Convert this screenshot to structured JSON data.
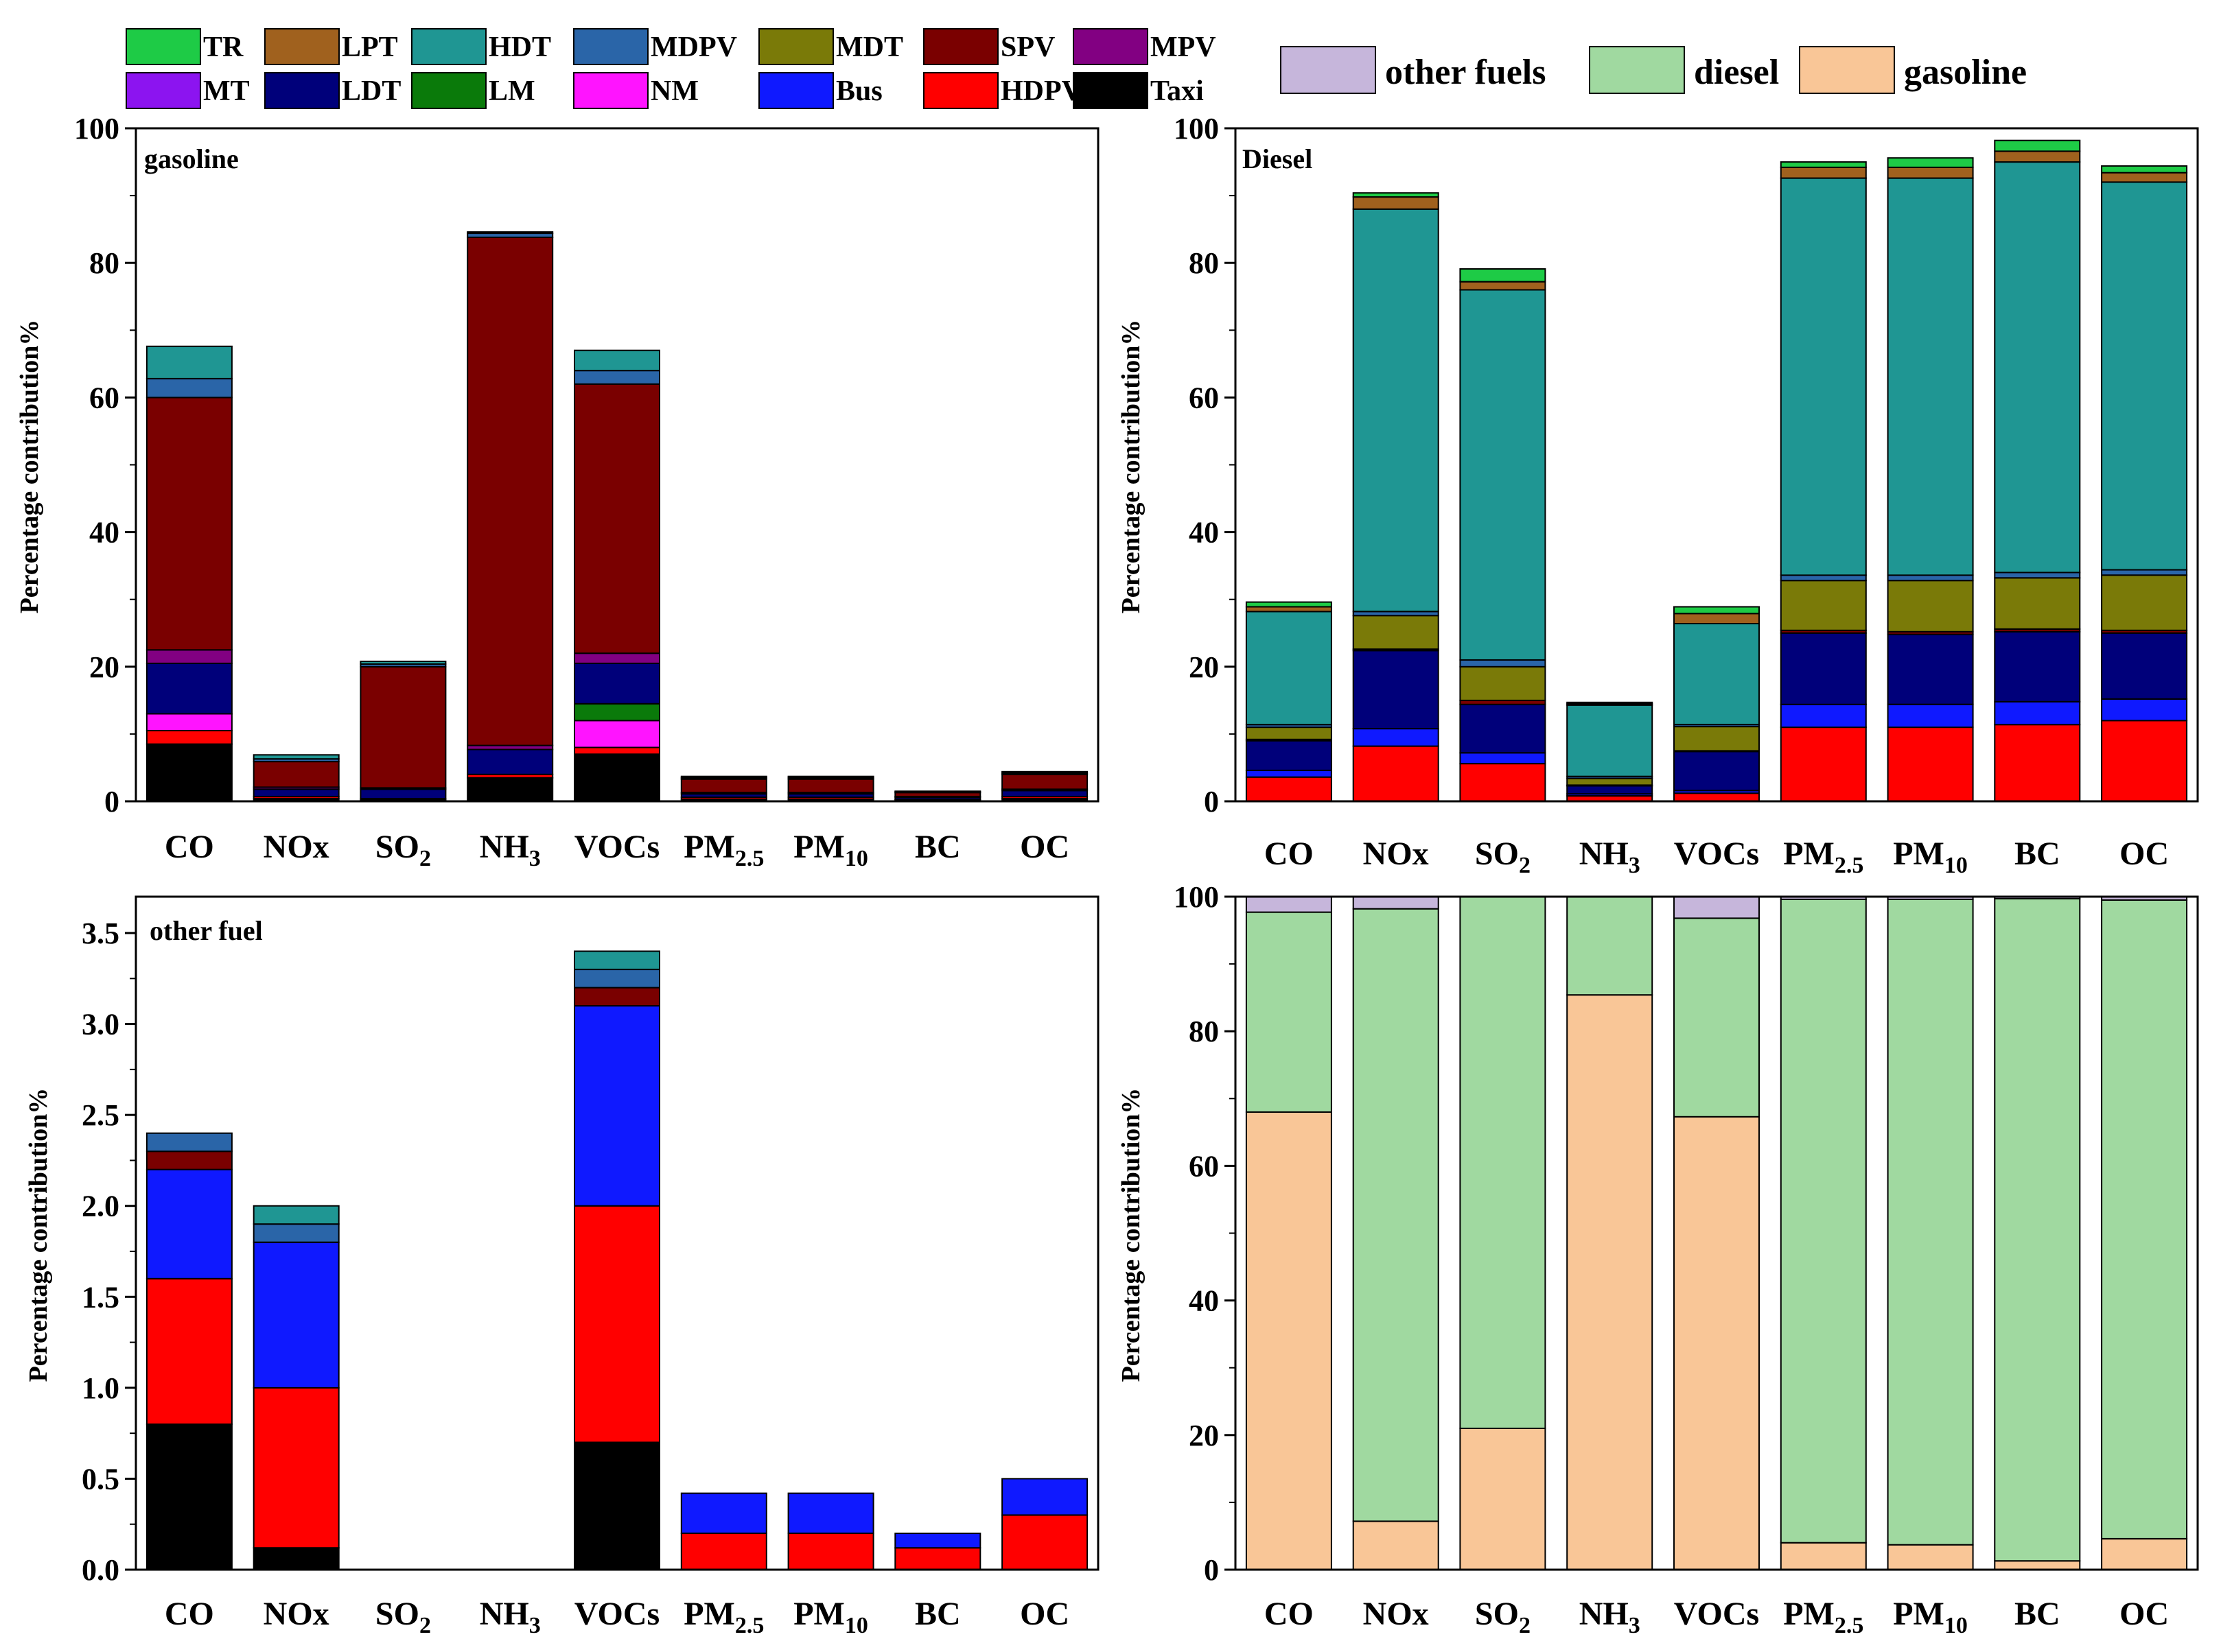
{
  "colors": {
    "TR": "#1ecb46",
    "LPT": "#a0611e",
    "HDT": "#1f9693",
    "MDPV": "#2a65a8",
    "MDT": "#7a7a08",
    "SPV": "#7a0000",
    "MPV": "#820082",
    "MT": "#8c14f0",
    "LDT": "#00007a",
    "LM": "#0a7a0a",
    "NM": "#ff14ff",
    "Bus": "#0f19ff",
    "HDPV": "#ff0000",
    "Taxi": "#000000",
    "other fuels": "#c6b6db",
    "diesel": "#a0d9a0",
    "gasoline": "#f9c697"
  },
  "legend_vehicle": {
    "row1": [
      "TR",
      "LPT",
      "HDT",
      "MDPV",
      "MDT",
      "SPV",
      "MPV"
    ],
    "row2": [
      "MT",
      "LDT",
      "LM",
      "NM",
      "Bus",
      "HDPV",
      "Taxi"
    ]
  },
  "legend_fuel": [
    "other fuels",
    "diesel",
    "gasoline"
  ],
  "chart_data": [
    {
      "id": "gasoline",
      "type": "bar",
      "stacked": true,
      "title": "gasoline",
      "ylabel": "Percentage contribution%",
      "ylim": [
        0,
        100
      ],
      "yticks": [
        0,
        20,
        40,
        60,
        80,
        100
      ],
      "ytick_labels": [
        "0",
        "20",
        "40",
        "60",
        "80",
        "100"
      ],
      "categories": [
        "CO",
        "NOx",
        "SO2",
        "NH3",
        "VOCs",
        "PM2.5",
        "PM10",
        "BC",
        "OC"
      ],
      "series": [
        {
          "name": "Taxi",
          "values": [
            8.5,
            0.4,
            0.2,
            3.5,
            7.0,
            0.3,
            0.3,
            0.2,
            0.4
          ]
        },
        {
          "name": "HDPV",
          "values": [
            2.0,
            0.3,
            0.2,
            0.5,
            1.0,
            0.3,
            0.3,
            0.1,
            0.3
          ]
        },
        {
          "name": "NM",
          "values": [
            2.5,
            0,
            0,
            0,
            4.0,
            0,
            0,
            0,
            0
          ]
        },
        {
          "name": "LM",
          "values": [
            0,
            0,
            0,
            0,
            2.5,
            0,
            0,
            0,
            0
          ]
        },
        {
          "name": "LDT",
          "values": [
            7.5,
            1.1,
            1.4,
            3.7,
            6.0,
            0.5,
            0.5,
            0.3,
            0.9
          ]
        },
        {
          "name": "MPV",
          "values": [
            2.0,
            0.3,
            0.2,
            0.6,
            1.5,
            0.2,
            0.2,
            0.1,
            0.2
          ]
        },
        {
          "name": "SPV",
          "values": [
            37.5,
            3.8,
            18.0,
            75.5,
            40.0,
            2.0,
            2.0,
            0.6,
            2.2
          ]
        },
        {
          "name": "MDPV",
          "values": [
            2.8,
            0.4,
            0.4,
            0.6,
            2.0,
            0.2,
            0.2,
            0.1,
            0.2
          ]
        },
        {
          "name": "HDT",
          "values": [
            4.8,
            0.6,
            0.4,
            0.2,
            3.0,
            0.2,
            0.2,
            0.1,
            0.2
          ]
        }
      ]
    },
    {
      "id": "diesel",
      "type": "bar",
      "stacked": true,
      "title": "Diesel",
      "ylabel": "Percentage contribution%",
      "ylim": [
        0,
        100
      ],
      "yticks": [
        0,
        20,
        40,
        60,
        80,
        100
      ],
      "ytick_labels": [
        "0",
        "20",
        "40",
        "60",
        "80",
        "100"
      ],
      "categories": [
        "CO",
        "NOx",
        "SO2",
        "NH3",
        "VOCs",
        "PM2.5",
        "PM10",
        "BC",
        "OC"
      ],
      "series": [
        {
          "name": "HDPV",
          "values": [
            3.6,
            8.2,
            5.6,
            0.8,
            1.2,
            11.0,
            11.0,
            11.4,
            12.0
          ]
        },
        {
          "name": "Bus",
          "values": [
            1.0,
            2.6,
            1.6,
            0.3,
            0.4,
            3.4,
            3.4,
            3.4,
            3.2
          ]
        },
        {
          "name": "LDT",
          "values": [
            4.4,
            11.6,
            7.2,
            1.2,
            5.8,
            10.6,
            10.4,
            10.4,
            9.8
          ]
        },
        {
          "name": "SPV",
          "values": [
            0.2,
            0.2,
            0.6,
            0.1,
            0.1,
            0.4,
            0.4,
            0.4,
            0.4
          ]
        },
        {
          "name": "MDT",
          "values": [
            1.8,
            5.0,
            5.0,
            1.0,
            3.6,
            7.4,
            7.6,
            7.6,
            8.2
          ]
        },
        {
          "name": "MDPV",
          "values": [
            0.4,
            0.6,
            1.0,
            0.3,
            0.3,
            0.8,
            0.8,
            0.8,
            0.8
          ]
        },
        {
          "name": "HDT",
          "values": [
            16.8,
            59.8,
            55.0,
            10.6,
            15.0,
            59.0,
            59.0,
            61.0,
            57.6
          ]
        },
        {
          "name": "LPT",
          "values": [
            0.7,
            1.8,
            1.2,
            0.2,
            1.5,
            1.6,
            1.6,
            1.6,
            1.4
          ]
        },
        {
          "name": "TR",
          "values": [
            0.7,
            0.6,
            1.9,
            0.2,
            1.0,
            0.8,
            1.4,
            1.6,
            1.0
          ]
        }
      ]
    },
    {
      "id": "other-fuel",
      "type": "bar",
      "stacked": true,
      "title": "other fuel",
      "ylabel": "Percentage contribution%",
      "ylim": [
        0,
        3.7
      ],
      "yticks": [
        0,
        0.5,
        1.0,
        1.5,
        2.0,
        2.5,
        3.0,
        3.5
      ],
      "ytick_labels": [
        "0.0",
        "0.5",
        "1.0",
        "1.5",
        "2.0",
        "2.5",
        "3.0",
        "3.5"
      ],
      "categories": [
        "CO",
        "NOx",
        "SO2",
        "NH3",
        "VOCs",
        "PM2.5",
        "PM10",
        "BC",
        "OC"
      ],
      "series": [
        {
          "name": "Taxi",
          "values": [
            0.8,
            0.12,
            0,
            0,
            0.7,
            0,
            0,
            0,
            0
          ]
        },
        {
          "name": "HDPV",
          "values": [
            0.8,
            0.88,
            0,
            0,
            1.3,
            0.2,
            0.2,
            0.12,
            0.3
          ]
        },
        {
          "name": "Bus",
          "values": [
            0.6,
            0.8,
            0,
            0,
            1.1,
            0.22,
            0.22,
            0.08,
            0.2
          ]
        },
        {
          "name": "SPV",
          "values": [
            0.1,
            0,
            0,
            0,
            0.1,
            0,
            0,
            0,
            0
          ]
        },
        {
          "name": "MDPV",
          "values": [
            0.1,
            0.1,
            0,
            0,
            0.1,
            0,
            0,
            0,
            0
          ]
        },
        {
          "name": "HDT",
          "values": [
            0,
            0.1,
            0,
            0,
            0.1,
            0,
            0,
            0,
            0
          ]
        }
      ]
    },
    {
      "id": "fuel-share",
      "type": "bar",
      "stacked": true,
      "title": "",
      "ylabel": "Percentage contribution%",
      "ylim": [
        0,
        100
      ],
      "yticks": [
        0,
        20,
        40,
        60,
        80,
        100
      ],
      "ytick_labels": [
        "0",
        "20",
        "40",
        "60",
        "80",
        "100"
      ],
      "categories": [
        "CO",
        "NOx",
        "SO2",
        "NH3",
        "VOCs",
        "PM2.5",
        "PM10",
        "BC",
        "OC"
      ],
      "series": [
        {
          "name": "gasoline",
          "values": [
            68.0,
            7.2,
            21.0,
            85.4,
            67.3,
            4.0,
            3.7,
            1.3,
            4.6
          ]
        },
        {
          "name": "diesel",
          "values": [
            29.7,
            91.0,
            79.0,
            14.6,
            29.5,
            95.6,
            95.9,
            98.4,
            94.9
          ]
        },
        {
          "name": "other fuels",
          "values": [
            2.3,
            1.8,
            0,
            0,
            3.2,
            0.4,
            0.4,
            0.3,
            0.5
          ]
        }
      ]
    }
  ]
}
